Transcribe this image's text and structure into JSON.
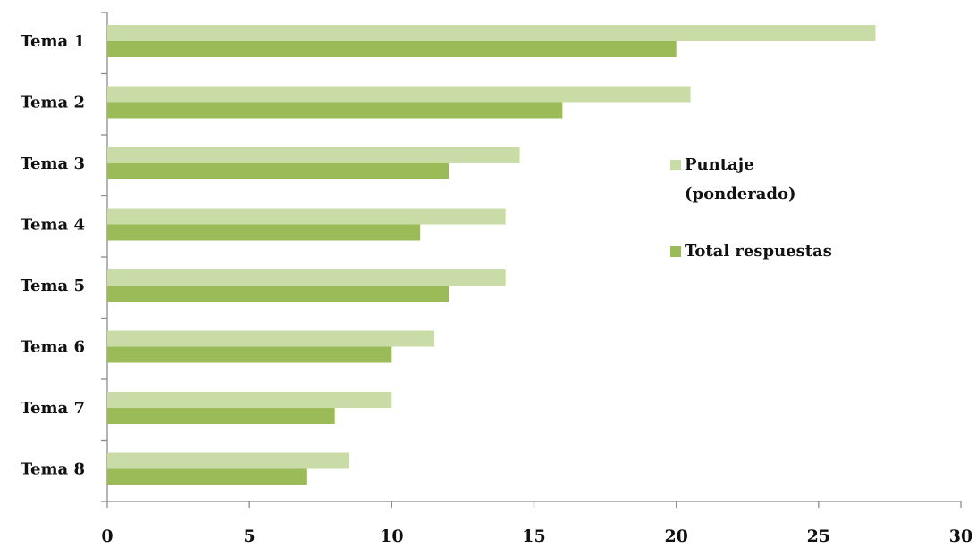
{
  "chart_data": {
    "type": "bar",
    "orientation": "horizontal",
    "categories": [
      "Tema 1",
      "Tema 2",
      "Tema 3",
      "Tema 4",
      "Tema 5",
      "Tema 6",
      "Tema 7",
      "Tema 8"
    ],
    "series": [
      {
        "name": "Puntaje (ponderado)",
        "legend_lines": [
          "Puntaje",
          "(ponderado)"
        ],
        "color": "#c9dca7",
        "values": [
          27,
          20.5,
          14.5,
          14,
          14,
          11.5,
          10,
          8.5
        ]
      },
      {
        "name": "Total respuestas",
        "legend_lines": [
          "Total respuestas"
        ],
        "color": "#9bbb59",
        "values": [
          20,
          16,
          12,
          11,
          12,
          10,
          8,
          7
        ]
      }
    ],
    "xlim": [
      0,
      30
    ],
    "xticks": [
      "0",
      "5",
      "10",
      "15",
      "20",
      "25",
      "30"
    ],
    "grid": false,
    "legend_position": "right"
  }
}
